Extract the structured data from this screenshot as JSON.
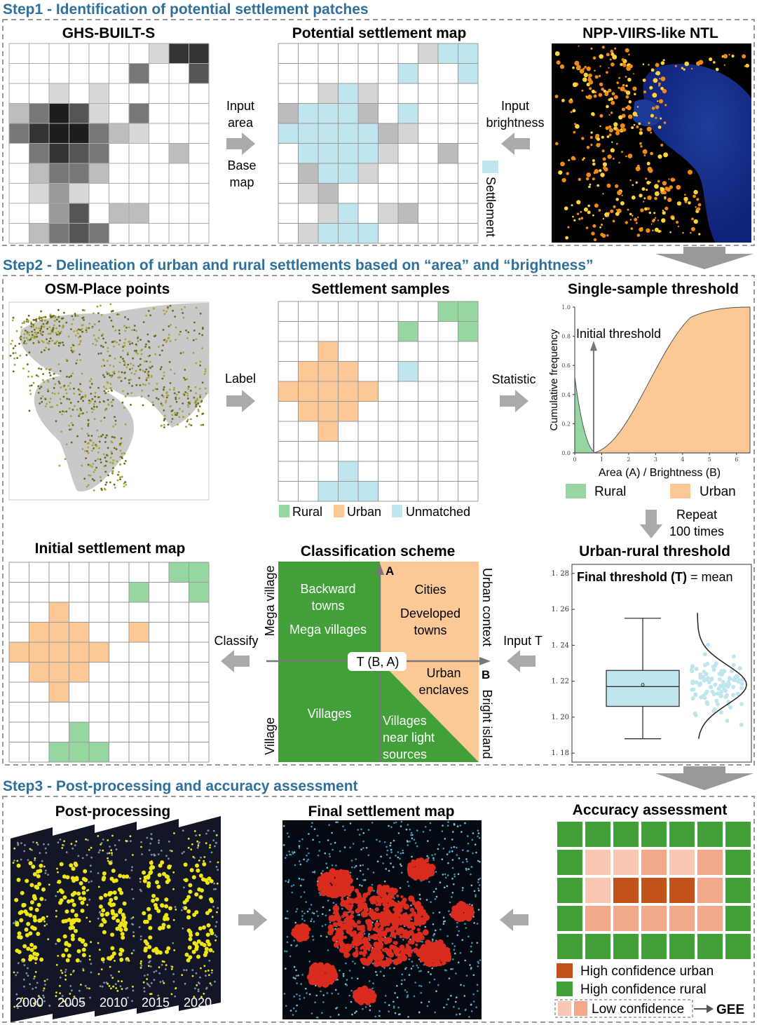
{
  "steps": {
    "step1": "Step1 - Identification of potential settlement patches",
    "step2": "Step2 - Delineation of urban and rural settlements based on “area” and “brightness”",
    "step3": "Step3 - Post-processing and accuracy assessment"
  },
  "titles": {
    "ghs": "GHS-BUILT-S",
    "potential": "Potential settlement map",
    "ntl": "NPP-VIIRS-like NTL",
    "osm": "OSM-Place points",
    "samples": "Settlement samples",
    "single": "Single-sample threshold",
    "initial": "Initial settlement map",
    "scheme": "Classification scheme",
    "urt": "Urban-rural threshold",
    "post": "Post-processing",
    "final": "Final settlement map",
    "accuracy": "Accuracy assessment"
  },
  "labels": {
    "input_area": [
      "Input",
      "area"
    ],
    "base_map": [
      "Base",
      "map"
    ],
    "input_brightness": [
      "Input",
      "brightness"
    ],
    "settlement": "Settlement",
    "label": "Label",
    "statistic": "Statistic",
    "repeat": [
      "Repeat",
      "100 times"
    ],
    "input_t": "Input T",
    "classify": "Classify",
    "gee": "GEE"
  },
  "legend_samples": [
    "Rural",
    "Urban",
    "Unmatched"
  ],
  "legend_threshold": [
    "Rural",
    "Urban"
  ],
  "legend_accuracy": [
    "High confidence urban",
    "High confidence rural",
    "Low confidence"
  ],
  "scheme": {
    "a": "A",
    "b": "B",
    "tba": "T (B, A)",
    "mega_village_axis": "Mega village",
    "village_axis": "Village",
    "urban_context_axis": "Urban context",
    "bright_island_axis": "Bright island",
    "q1": [
      "Backward",
      "towns"
    ],
    "q1b": "Mega villages",
    "q2": [
      "Cities"
    ],
    "q2b": [
      "Developed",
      "towns"
    ],
    "q3": "Villages",
    "q4a": [
      "Urban",
      "enclaves"
    ],
    "q4b": [
      "Villages",
      "near light",
      "sources"
    ]
  },
  "cdf_chart": {
    "type": "area",
    "xlabel": "Area (A) / Brightness (B)",
    "ylabel": "Cumulative frequency",
    "annotation": "Initial threshold",
    "xticks": [
      "0",
      "1",
      "2",
      "3",
      "4",
      "5",
      "6"
    ],
    "yticks": [
      "0.0",
      "0.2",
      "0.4",
      "0.6",
      "0.8",
      "1.0"
    ],
    "xlim": [
      0,
      6.5
    ],
    "ylim": [
      0,
      1
    ],
    "threshold": 0.7
  },
  "box_chart": {
    "type": "box",
    "annotation_bold": "Final threshold (T)",
    "annotation_rest": " = mean",
    "yticks": [
      "1. 18",
      "1. 20",
      "1. 22",
      "1. 24",
      "1. 26",
      "1. 28"
    ],
    "ylim": [
      1.175,
      1.285
    ],
    "whisker_low": 1.188,
    "q1": 1.206,
    "median": 1.217,
    "q3": 1.226,
    "whisker_high": 1.255,
    "mean": 1.218
  },
  "years": [
    "2000",
    "2005",
    "2010",
    "2015",
    "2020"
  ],
  "colors": {
    "step": "#2e6f9c",
    "cyan": "#bfe6ee",
    "urban": "#fcc996",
    "rural": "#96d6a0",
    "dkgreen": "#41a037",
    "urban_hc": "#c3521a",
    "low": "#f2a989",
    "low2": "#f7c7b2"
  }
}
